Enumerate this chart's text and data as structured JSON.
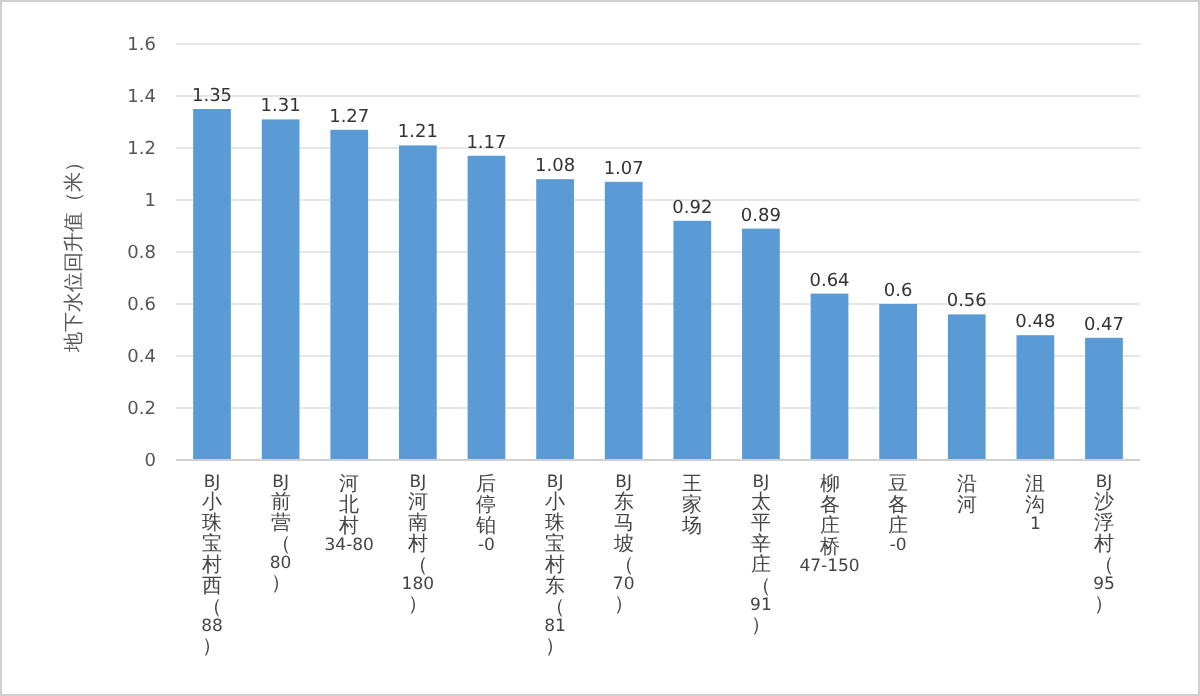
{
  "chart_data": {
    "type": "bar",
    "ylabel": "地下水位回升值（米）",
    "categories": [
      "BJ小珠宝村西（88）",
      "BJ前营（80）",
      "河北村34-80",
      "BJ河南村（180）",
      "后停铂-0",
      "BJ小珠宝村东（81）",
      "BJ东马坡（70）",
      "王家场",
      "BJ太平辛庄（91）",
      "柳各庄桥47-150",
      "豆各庄-0",
      "沿河",
      "沮沟1",
      "BJ沙浮村（95）"
    ],
    "values": [
      1.35,
      1.31,
      1.27,
      1.21,
      1.17,
      1.08,
      1.07,
      0.92,
      0.89,
      0.64,
      0.6,
      0.56,
      0.48,
      0.47
    ],
    "color": "#5b9bd5",
    "ylim": [
      0,
      1.6
    ],
    "yticks": [
      0,
      0.2,
      0.4,
      0.6,
      0.8,
      1,
      1.2,
      1.4,
      1.6
    ],
    "grid": "y",
    "data_labels": true
  }
}
